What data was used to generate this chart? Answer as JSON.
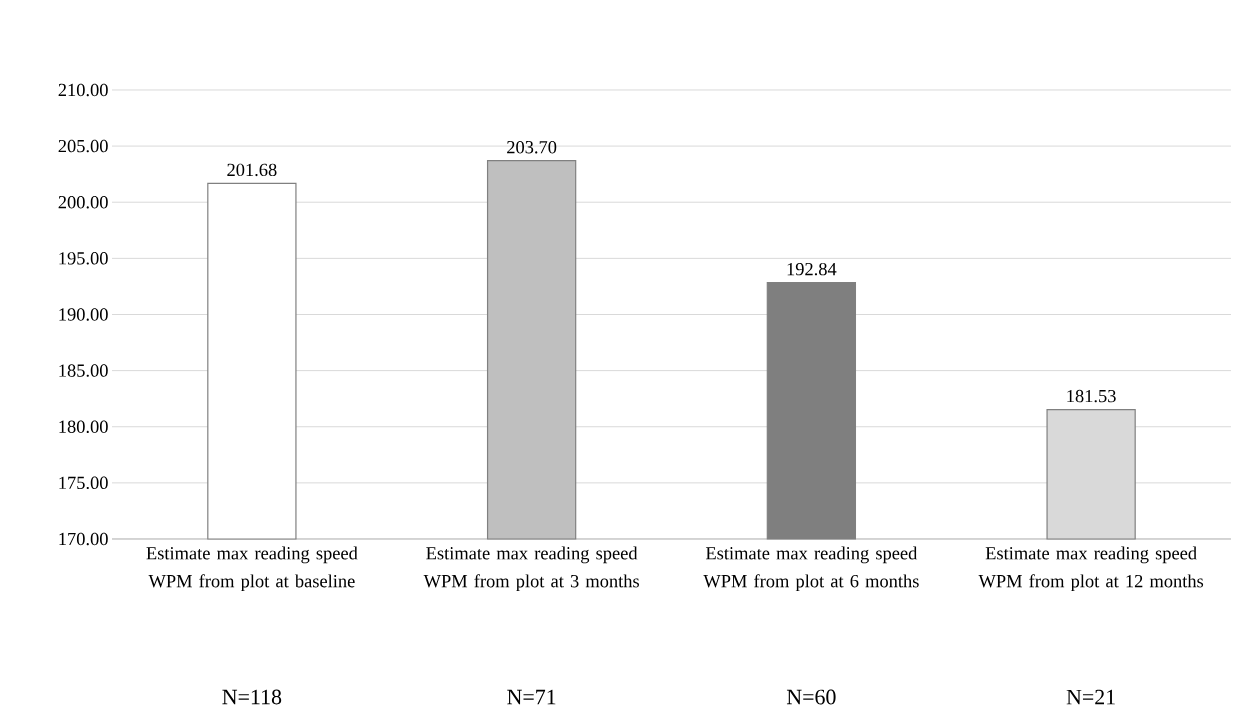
{
  "chart_data": {
    "type": "bar",
    "categories": [
      "Estimate max reading speed WPM from plot at baseline",
      "Estimate max reading speed WPM from plot at 3 months",
      "Estimate max reading speed WPM from plot at 6 months",
      "Estimate max reading speed WPM from plot at 12 months"
    ],
    "values": [
      201.68,
      203.7,
      192.84,
      181.53
    ],
    "value_labels": [
      "201.68",
      "203.70",
      "192.84",
      "181.53"
    ],
    "colors": [
      "#ffffff",
      "#bfbfbf",
      "#7f7f7f",
      "#d9d9d9"
    ],
    "ylim": [
      170,
      210
    ],
    "yticks": [
      {
        "value": 170,
        "label": "170.00"
      },
      {
        "value": 175,
        "label": "175.00"
      },
      {
        "value": 180,
        "label": "180.00"
      },
      {
        "value": 185,
        "label": "185.00"
      },
      {
        "value": 190,
        "label": "190.00"
      },
      {
        "value": 195,
        "label": "195.00"
      },
      {
        "value": 200,
        "label": "200.00"
      },
      {
        "value": 205,
        "label": "205.00"
      },
      {
        "value": 210,
        "label": "210.00"
      }
    ],
    "grid": "y",
    "annotations": [
      "N=118",
      "N=71",
      "N=60",
      "N=21"
    ]
  }
}
